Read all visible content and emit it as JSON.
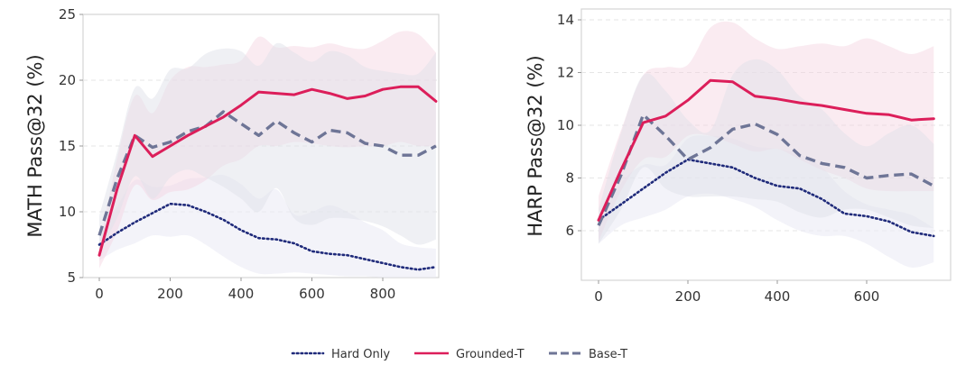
{
  "colors": {
    "hard_only": "#1f2a7a",
    "grounded_t": "#dc1e5a",
    "base_t": "#6e7596",
    "hard_only_band": "#e9eaf4",
    "grounded_t_band": "#f4d3df",
    "base_t_band": "#dfe1ea",
    "grid": "#e6e6e6",
    "frame": "#d4d4d4"
  },
  "legend": {
    "items": [
      {
        "label": "Hard Only",
        "style": "dotted",
        "color_key": "hard_only"
      },
      {
        "label": "Grounded-T",
        "style": "solid",
        "color_key": "grounded_t"
      },
      {
        "label": "Base-T",
        "style": "dashed",
        "color_key": "base_t"
      }
    ],
    "placement": "bottom-center"
  },
  "chart_data": [
    {
      "type": "line",
      "title": "",
      "xlabel": "",
      "ylabel": "MATH Pass@32 (%)",
      "xlim": [
        -30,
        1010
      ],
      "ylim": [
        5,
        25
      ],
      "xticks": [
        0,
        200,
        400,
        600,
        800
      ],
      "yticks": [
        5,
        10,
        15,
        20,
        25
      ],
      "grid": "horizontal-dashed",
      "x": [
        0,
        50,
        100,
        150,
        200,
        250,
        300,
        350,
        400,
        450,
        500,
        550,
        600,
        650,
        700,
        750,
        800,
        850,
        900,
        950
      ],
      "series": [
        {
          "name": "Hard Only",
          "values": [
            7.5,
            8.4,
            9.2,
            9.9,
            10.6,
            10.5,
            10.0,
            9.4,
            8.6,
            8.0,
            7.9,
            7.6,
            7.0,
            6.8,
            6.7,
            6.4,
            6.1,
            5.8,
            5.6,
            5.8
          ],
          "band_low": [
            6.3,
            7.1,
            7.6,
            8.2,
            8.1,
            8.2,
            7.5,
            6.6,
            5.8,
            5.3,
            5.3,
            5.4,
            5.3,
            5.2,
            5.1,
            5.1,
            5.0,
            5.0,
            5.0,
            5.0
          ],
          "band_high": [
            8.3,
            10.4,
            12.4,
            11.9,
            12.0,
            12.5,
            12.6,
            12.8,
            12.1,
            11.0,
            11.7,
            9.8,
            10.0,
            10.5,
            10.0,
            9.2,
            8.6,
            7.6,
            7.3,
            7.2
          ]
        },
        {
          "name": "Grounded-T",
          "values": [
            6.7,
            11.7,
            15.8,
            14.2,
            15.0,
            15.8,
            16.5,
            17.2,
            18.1,
            19.1,
            19.0,
            18.9,
            19.3,
            19.0,
            18.6,
            18.8,
            19.3,
            19.5,
            19.5,
            18.4
          ],
          "band_low": [
            5.7,
            8.5,
            12.0,
            10.9,
            11.5,
            11.7,
            12.4,
            13.5,
            14.0,
            15.0,
            15.0,
            15.3,
            15.2,
            15.0,
            14.9,
            15.0,
            15.0,
            15.3,
            15.0,
            15.0
          ],
          "band_high": [
            7.4,
            14.0,
            18.8,
            17.5,
            20.0,
            21.0,
            21.0,
            21.2,
            21.5,
            23.3,
            22.5,
            22.6,
            22.5,
            22.8,
            22.5,
            22.4,
            23.0,
            23.7,
            23.5,
            22.1
          ]
        },
        {
          "name": "Base-T",
          "values": [
            8.2,
            12.5,
            15.8,
            14.9,
            15.3,
            16.1,
            16.5,
            17.6,
            16.7,
            15.8,
            16.9,
            16.0,
            15.3,
            16.2,
            16.0,
            15.2,
            15.0,
            14.3,
            14.3,
            15.0
          ],
          "band_low": [
            7.0,
            9.5,
            12.7,
            11.0,
            12.6,
            13.2,
            12.6,
            11.9,
            11.0,
            10.0,
            11.8,
            9.5,
            9.0,
            9.5,
            9.5,
            9.3,
            8.9,
            8.2,
            7.5,
            7.9
          ],
          "band_high": [
            9.7,
            14.5,
            19.4,
            18.6,
            20.8,
            20.9,
            22.0,
            22.4,
            22.2,
            21.1,
            22.8,
            22.1,
            21.4,
            22.2,
            21.9,
            21.0,
            20.7,
            20.5,
            20.5,
            22.1
          ]
        }
      ]
    },
    {
      "type": "line",
      "title": "",
      "xlabel": "",
      "ylabel": "HARP Pass@32 (%)",
      "xlim": [
        -40,
        790
      ],
      "ylim": [
        4.1,
        14.4
      ],
      "xticks": [
        0,
        200,
        400,
        600
      ],
      "yticks": [
        6,
        8,
        10,
        12,
        14
      ],
      "grid": "horizontal-dashed",
      "x": [
        0,
        50,
        100,
        150,
        200,
        250,
        300,
        350,
        400,
        450,
        500,
        550,
        600,
        650,
        700,
        750
      ],
      "series": [
        {
          "name": "Hard Only",
          "values": [
            6.4,
            7.0,
            7.6,
            8.2,
            8.7,
            8.55,
            8.4,
            8.0,
            7.7,
            7.6,
            7.2,
            6.65,
            6.55,
            6.35,
            5.95,
            5.8
          ],
          "band_low": [
            5.5,
            6.2,
            6.5,
            6.8,
            7.3,
            7.4,
            7.2,
            6.9,
            6.4,
            6.0,
            5.8,
            5.8,
            5.5,
            5.0,
            4.6,
            4.8
          ],
          "band_high": [
            6.3,
            7.8,
            8.5,
            8.5,
            9.5,
            9.6,
            9.5,
            9.2,
            9.1,
            8.9,
            8.4,
            7.5,
            7.0,
            6.8,
            6.6,
            6.1
          ]
        },
        {
          "name": "Grounded-T",
          "values": [
            6.4,
            8.3,
            10.1,
            10.35,
            10.95,
            11.7,
            11.65,
            11.1,
            11.0,
            10.85,
            10.75,
            10.6,
            10.45,
            10.4,
            10.2,
            10.25
          ],
          "band_low": [
            5.6,
            7.5,
            8.7,
            8.8,
            9.6,
            9.6,
            9.3,
            9.0,
            9.1,
            8.7,
            8.3,
            8.0,
            7.6,
            7.5,
            7.5,
            7.5
          ],
          "band_high": [
            7.3,
            9.8,
            11.9,
            12.2,
            12.3,
            13.7,
            13.9,
            13.3,
            12.9,
            13.0,
            13.1,
            13.0,
            13.3,
            13.0,
            12.7,
            13.0
          ]
        },
        {
          "name": "Base-T",
          "values": [
            6.2,
            8.1,
            10.4,
            9.6,
            8.7,
            9.15,
            9.85,
            10.05,
            9.65,
            8.85,
            8.55,
            8.4,
            8.0,
            8.1,
            8.15,
            7.7
          ],
          "band_low": [
            5.5,
            6.8,
            8.4,
            7.6,
            7.3,
            7.3,
            7.3,
            7.2,
            7.1,
            6.7,
            6.5,
            6.8,
            6.8,
            6.5,
            6.2,
            6.1
          ],
          "band_high": [
            6.8,
            9.7,
            11.9,
            11.3,
            10.2,
            9.8,
            11.9,
            12.5,
            12.1,
            11.1,
            10.6,
            9.7,
            9.2,
            9.7,
            10.0,
            9.3
          ]
        }
      ]
    }
  ]
}
